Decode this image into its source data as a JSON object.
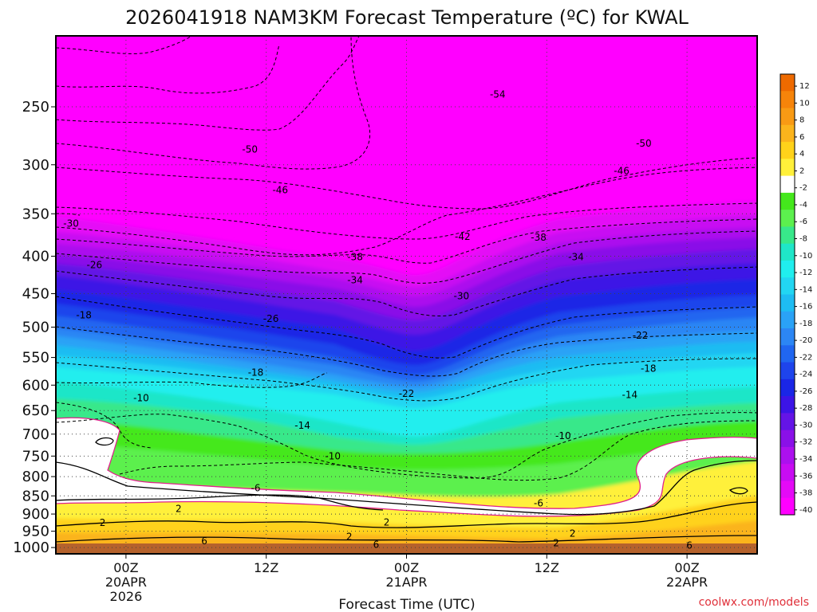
{
  "chart_data": {
    "type": "heatmap",
    "title": "2026041918 NAM3KM Forecast Temperature (ºC) for KWAL",
    "xlabel": "Forecast Time (UTC)",
    "ylabel": "",
    "x_ticks": [
      {
        "hours": 6,
        "lines": [
          "00Z",
          "20APR",
          "2026"
        ]
      },
      {
        "hours": 18,
        "lines": [
          "12Z"
        ]
      },
      {
        "hours": 30,
        "lines": [
          "00Z",
          "21APR"
        ]
      },
      {
        "hours": 42,
        "lines": [
          "12Z"
        ]
      },
      {
        "hours": 54,
        "lines": [
          "00Z",
          "22APR"
        ]
      }
    ],
    "xlim_hours": [
      0,
      60
    ],
    "y_ticks": [
      "250",
      "300",
      "350",
      "400",
      "450",
      "500",
      "550",
      "600",
      "650",
      "700",
      "750",
      "800",
      "850",
      "900",
      "950",
      "1000"
    ],
    "ylim": [
      200,
      1020
    ],
    "y_scale": "log-pressure",
    "grid": "dotted",
    "colorbar": {
      "placement": "right",
      "labels": [
        "12",
        "10",
        "8",
        "6",
        "4",
        "2",
        "-2",
        "-4",
        "-6",
        "-8",
        "-10",
        "-12",
        "-14",
        "-16",
        "-18",
        "-20",
        "-22",
        "-24",
        "-26",
        "-28",
        "-30",
        "-32",
        "-34",
        "-36",
        "-38",
        "-40"
      ],
      "colors": [
        "#ee6a00",
        "#f6840a",
        "#f89a14",
        "#fbb41c",
        "#ffd21a",
        "#fff03a",
        "#ffffff",
        "#44e81c",
        "#5cf04e",
        "#38e88a",
        "#1fe6c8",
        "#20eeee",
        "#22d6f2",
        "#1ebcf2",
        "#2aa2f6",
        "#2c86f4",
        "#2066f0",
        "#1e44ec",
        "#1a26e6",
        "#3c14e6",
        "#6414e6",
        "#8a10e8",
        "#ac10ee",
        "#c80cf2",
        "#e40af6",
        "#ff00ff"
      ]
    },
    "contour_labels": [
      {
        "value": "-54",
        "hours": 37.8,
        "pressure": 240
      },
      {
        "value": "-50",
        "hours": 16.6,
        "pressure": 285
      },
      {
        "value": "-50",
        "hours": 50.3,
        "pressure": 280
      },
      {
        "value": "-46",
        "hours": 19.2,
        "pressure": 324
      },
      {
        "value": "-46",
        "hours": 48.4,
        "pressure": 305
      },
      {
        "value": "-42",
        "hours": 34.8,
        "pressure": 375
      },
      {
        "value": "-38",
        "hours": 25.6,
        "pressure": 400
      },
      {
        "value": "-38",
        "hours": 41.3,
        "pressure": 376
      },
      {
        "value": "-34",
        "hours": 25.6,
        "pressure": 430
      },
      {
        "value": "-34",
        "hours": 44.5,
        "pressure": 400
      },
      {
        "value": "-30",
        "hours": 1.3,
        "pressure": 360
      },
      {
        "value": "-30",
        "hours": 34.7,
        "pressure": 452
      },
      {
        "value": "-26",
        "hours": 3.3,
        "pressure": 410
      },
      {
        "value": "-26",
        "hours": 18.4,
        "pressure": 486
      },
      {
        "value": "-22",
        "hours": 30.0,
        "pressure": 615
      },
      {
        "value": "-22",
        "hours": 50.0,
        "pressure": 512
      },
      {
        "value": "-18",
        "hours": 2.4,
        "pressure": 480
      },
      {
        "value": "-18",
        "hours": 17.1,
        "pressure": 575
      },
      {
        "value": "-18",
        "hours": 50.7,
        "pressure": 568
      },
      {
        "value": "-14",
        "hours": 21.1,
        "pressure": 680
      },
      {
        "value": "-14",
        "hours": 49.1,
        "pressure": 617
      },
      {
        "value": "-10",
        "hours": 7.3,
        "pressure": 623
      },
      {
        "value": "-10",
        "hours": 23.7,
        "pressure": 748
      },
      {
        "value": "-10",
        "hours": 43.4,
        "pressure": 702
      },
      {
        "value": "-6",
        "hours": 17.1,
        "pressure": 827
      },
      {
        "value": "-6",
        "hours": 41.3,
        "pressure": 868
      },
      {
        "value": "2",
        "hours": 10.5,
        "pressure": 883
      },
      {
        "value": "2",
        "hours": 4.0,
        "pressure": 923
      },
      {
        "value": "2",
        "hours": 28.3,
        "pressure": 922
      },
      {
        "value": "2",
        "hours": 25.1,
        "pressure": 964
      },
      {
        "value": "2",
        "hours": 44.2,
        "pressure": 955
      },
      {
        "value": "2",
        "hours": 42.8,
        "pressure": 984
      },
      {
        "value": "6",
        "hours": 12.7,
        "pressure": 978
      },
      {
        "value": "6",
        "hours": 27.4,
        "pressure": 988
      },
      {
        "value": "6",
        "hours": 54.2,
        "pressure": 991
      }
    ]
  },
  "credit": "coolwx.com/models"
}
